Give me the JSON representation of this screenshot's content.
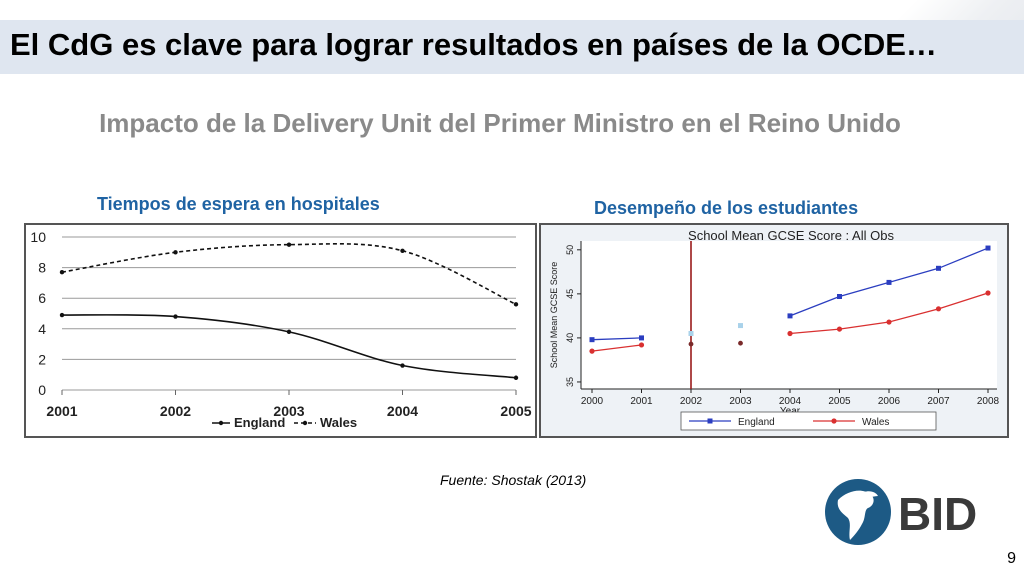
{
  "slide": {
    "title": "El CdG es clave para lograr resultados en países de la OCDE…",
    "subtitle": "Impacto de la Delivery Unit del Primer Ministro en el Reino Unido",
    "source": "Fuente: Shostak (2013)",
    "page_number": "9",
    "logo_text": "BID"
  },
  "chart_data": [
    {
      "type": "line",
      "title": "Tiempos de espera en hospitales",
      "categories": [
        "2001",
        "2002",
        "2003",
        "2004",
        "2005"
      ],
      "series": [
        {
          "name": "England",
          "style": "solid",
          "values": [
            4.9,
            4.8,
            3.8,
            1.6,
            0.8
          ]
        },
        {
          "name": "Wales",
          "style": "dashed",
          "values": [
            7.7,
            9.0,
            9.5,
            9.1,
            5.6
          ]
        }
      ],
      "yticks": [
        "0",
        "2",
        "4",
        "6",
        "8",
        "10"
      ],
      "ylim": [
        0,
        10
      ],
      "grid": true,
      "legend": "bottom"
    },
    {
      "type": "line",
      "title": "Desempeño de los estudiantes",
      "inner_title": "School Mean GCSE Score : All Obs",
      "xlabel": "Year",
      "ylabel": "School Mean GCSE Score",
      "categories": [
        "2000",
        "2001",
        "2002",
        "2003",
        "2004",
        "2005",
        "2006",
        "2007",
        "2008"
      ],
      "yticks": [
        "35",
        "40",
        "45",
        "50"
      ],
      "ylim": [
        34.2,
        51
      ],
      "policy_line_year": "2002",
      "series": [
        {
          "name": "England",
          "color": "#2b3ec0",
          "marker": "square",
          "segments": [
            [
              [
                "2000",
                39.8
              ],
              [
                "2001",
                40.0
              ]
            ],
            [
              [
                "2004",
                42.5
              ],
              [
                "2005",
                44.7
              ],
              [
                "2006",
                46.3
              ],
              [
                "2007",
                47.9
              ],
              [
                "2008",
                50.2
              ]
            ]
          ]
        },
        {
          "name": "Wales",
          "color": "#d93030",
          "marker": "circle",
          "segments": [
            [
              [
                "2000",
                38.5
              ],
              [
                "2001",
                39.2
              ]
            ],
            [
              [
                "2004",
                40.5
              ],
              [
                "2005",
                41.0
              ],
              [
                "2006",
                41.8
              ],
              [
                "2007",
                43.3
              ],
              [
                "2008",
                45.1
              ]
            ]
          ]
        }
      ],
      "isolated_points": [
        {
          "year": "2002",
          "value": 40.5,
          "color": "#a9d2ea"
        },
        {
          "year": "2003",
          "value": 41.4,
          "color": "#a9d2ea"
        },
        {
          "year": "2002",
          "value": 39.3,
          "color": "#7a2a2a"
        },
        {
          "year": "2003",
          "value": 39.4,
          "color": "#7a2a2a"
        }
      ],
      "legend": "bottom"
    }
  ]
}
